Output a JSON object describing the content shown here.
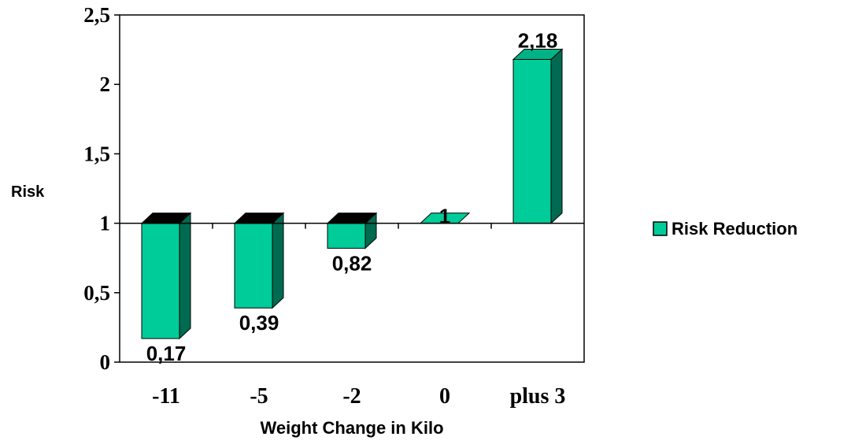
{
  "chart_data": {
    "type": "bar",
    "title": "",
    "xlabel": "Weight Change in Kilo",
    "ylabel": "Risk",
    "categories": [
      "-11",
      "-5",
      "-2",
      "0",
      "plus 3"
    ],
    "series": [
      {
        "name": "Risk Reduction",
        "values": [
          0.17,
          0.39,
          0.82,
          1,
          2.18
        ],
        "value_labels": [
          "0,17",
          "0,39",
          "0,82",
          "1",
          "2,18"
        ],
        "color": "#00CC99"
      }
    ],
    "ylim": [
      0,
      2.5
    ],
    "baseline": 1,
    "yticks": [
      0,
      0.5,
      1,
      1.5,
      2,
      2.5
    ],
    "ytick_labels": [
      "0",
      "0,5",
      "1",
      "1,5",
      "2",
      "2,5"
    ],
    "grid": false,
    "legend_position": "right",
    "colors": {
      "bar_front": "#00CC99",
      "bar_side": "#006B50",
      "bar_top_below_baseline": "#000000",
      "bar_top_above_baseline": "#00B386"
    }
  }
}
